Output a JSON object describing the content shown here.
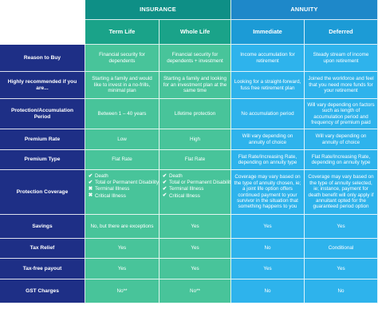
{
  "groups": {
    "insurance": "INSURANCE",
    "annuity": "ANNUITY"
  },
  "columns": [
    "Term Life",
    "Whole Life",
    "Immediate",
    "Deferred"
  ],
  "rows": [
    {
      "label": "Reason to Buy",
      "cells": [
        "Financial security for dependents",
        "Financial security for dependents + investment",
        "Income accumulation for retirement",
        "Steady stream of income upon retirement"
      ]
    },
    {
      "label": "Highly recommended if you are...",
      "cells": [
        "Starting a family and would like to invest in a no-frills, minimal plan",
        "Starting a family and looking for an investment plan at the same time",
        "Looking for a straight-forward, fuss free retirement plan",
        "Joined the workforce and feel that you need more funds for your retirement"
      ]
    },
    {
      "label": "Protection/Accumulation Period",
      "cells": [
        "Between 1 – 40 years",
        "Lifetime protection",
        "No accumulation period",
        "Will vary depending on factors such as length of accumulation period and frequency of premium paid"
      ]
    },
    {
      "label": "Premium Rate",
      "cells": [
        "Low",
        "High",
        "Will vary depending on annuity of choice",
        "Will vary depending on annuity of choice"
      ]
    },
    {
      "label": "Premium Type",
      "cells": [
        "Flat Rate",
        "Flat Rate",
        "Flat Rate/Increasing Rate, depending on annuity type",
        "Flat Rate/Increasing Rate, depending on annuity type"
      ]
    },
    {
      "label": "Protection Coverage",
      "coverage_term": [
        {
          "mark": "✔",
          "text": "Death"
        },
        {
          "mark": "✔",
          "text": "Total or Permanent Disability"
        },
        {
          "mark": "✖",
          "text": "Terminal Illness"
        },
        {
          "mark": "✖",
          "text": "Critical Illness"
        }
      ],
      "coverage_whole": [
        {
          "mark": "✔",
          "text": "Death"
        },
        {
          "mark": "✔",
          "text": "Total or Permanent Disability"
        },
        {
          "mark": "✔",
          "text": "Terminal Illness"
        },
        {
          "mark": "✔",
          "text": "Critical Illness"
        }
      ],
      "cells": [
        "",
        "",
        "Coverage may vary based on the type of annuity chosen, ie; a joint life option offers continued payment to your survivor in the situation that something happens to you",
        "Coverage may vary based on the type of annuity selected, ie; instance, payment for death benefit will only apply if annuitant opted for the guaranteed period option"
      ]
    },
    {
      "label": "Savings",
      "cells": [
        "No, but there are exceptions",
        "Yes",
        "Yes",
        "Yes"
      ]
    },
    {
      "label": "Tax Relief",
      "cells": [
        "Yes",
        "Yes",
        "No",
        "Conditional"
      ]
    },
    {
      "label": "Tax-free payout",
      "cells": [
        "Yes",
        "Yes",
        "Yes",
        "Yes"
      ]
    },
    {
      "label": "GST Charges",
      "cells": [
        "No**",
        "No**",
        "No",
        "No"
      ]
    }
  ],
  "colors": {
    "row_label": "#1e2f86",
    "insurance_group": "#0e8f86",
    "insurance_header": "#1aa389",
    "insurance_cell": "#48c49a",
    "annuity_group": "#1e88c9",
    "annuity_header": "#1c9bd6",
    "annuity_cell": "#2eb3ec"
  }
}
